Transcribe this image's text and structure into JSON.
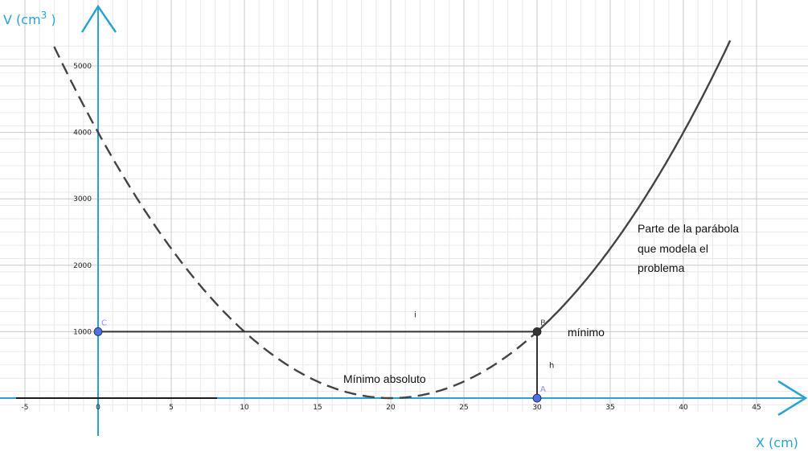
{
  "chart_data": {
    "type": "line",
    "title": "",
    "xlabel": "X (cm)",
    "ylabel_base": "V (cm",
    "ylabel_exp": "3",
    "ylabel_close": " )",
    "xlim": [
      -5.3,
      45.5
    ],
    "ylim": [
      -150,
      5400
    ],
    "x_ticks": [
      -5,
      0,
      5,
      10,
      15,
      20,
      25,
      30,
      35,
      40,
      45
    ],
    "y_ticks": [
      1000,
      2000,
      3000,
      4000,
      5000
    ],
    "grid": true,
    "series": [
      {
        "description": "dashed",
        "x_range": [
          -3,
          30
        ],
        "formula": "10*(x-20)^2"
      },
      {
        "description": "solid",
        "x_range": [
          30,
          43.2
        ],
        "formula": "10*(x-20)^2"
      }
    ],
    "points": [
      {
        "name": "A",
        "x": 30,
        "y": 0,
        "color": "#4f6fe6"
      },
      {
        "name": "B",
        "x": 30,
        "y": 1000,
        "color": "#333333"
      },
      {
        "name": "C",
        "x": 0,
        "y": 1000,
        "color": "#4f6fe6"
      }
    ],
    "segments": [
      {
        "label": "i",
        "from": [
          0,
          1000
        ],
        "to": [
          30,
          1000
        ]
      },
      {
        "label": "h",
        "from": [
          30,
          1000
        ],
        "to": [
          30,
          0
        ]
      }
    ],
    "annotations": {
      "parte_line1": "Parte de la parábola",
      "parte_line2": "que modela el",
      "parte_line3": "problema",
      "minimo": "mínimo",
      "minimo_absoluto": "Mínimo absoluto"
    },
    "colors": {
      "axis": "#29a3d6",
      "curve": "#444444",
      "grid_major": "#c8c8c8",
      "grid_minor": "#e9e9e9"
    }
  }
}
